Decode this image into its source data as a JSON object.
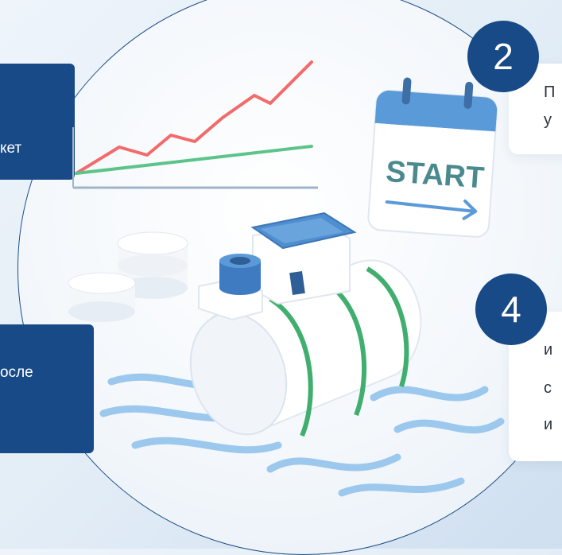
{
  "cards": {
    "left_top_text": "кет",
    "left_bottom_text": "осле",
    "right_top_line1": "П",
    "right_top_line2": "у",
    "right_bottom_line1": "и",
    "right_bottom_line2": "с",
    "right_bottom_line3": "и"
  },
  "badges": {
    "step2": "2",
    "step4": "4"
  },
  "calendar": {
    "label": "START"
  },
  "colors": {
    "navy": "#174a86",
    "trend_red": "#f26b6b",
    "trend_green": "#5cc48a",
    "water_blue": "#9cc8ee"
  }
}
